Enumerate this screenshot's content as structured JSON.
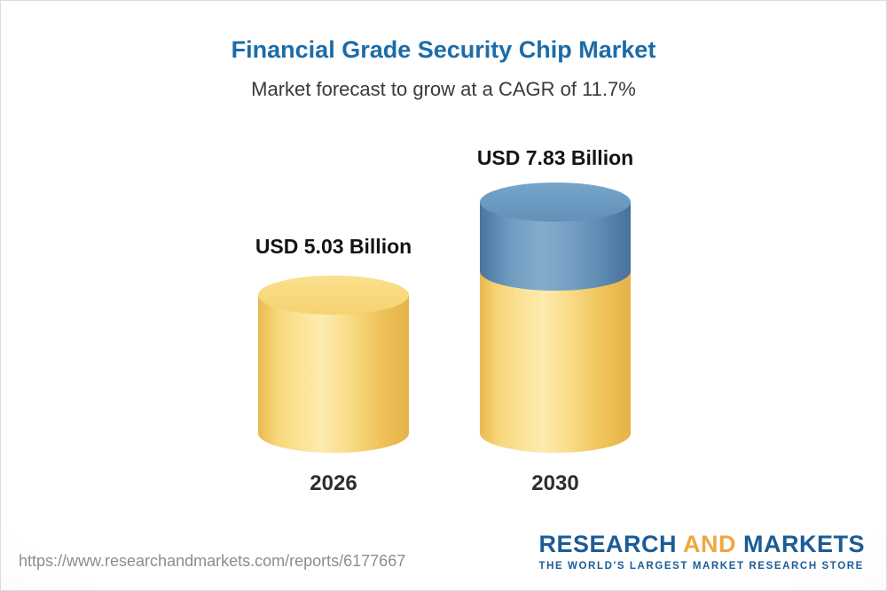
{
  "page": {
    "title": "Financial Grade Security Chip Market",
    "subtitle": "Market forecast to grow at a CAGR of 11.7%"
  },
  "chart_data": {
    "type": "bar",
    "bar_style": "3d-cylinder",
    "title": "Financial Grade Security Chip Market",
    "subtitle": "Market forecast to grow at a CAGR of 11.7%",
    "cagr_percent": 11.7,
    "unit": "USD Billion",
    "categories": [
      "2026",
      "2030"
    ],
    "values": [
      5.03,
      7.83
    ],
    "value_labels": [
      "USD 5.03 Billion",
      "USD 7.83 Billion"
    ],
    "legend": "none",
    "axes": "none",
    "colors": {
      "base_bar": "#F5CE68",
      "growth_segment": "#6290B7",
      "title_text": "#1C6CA8"
    }
  },
  "footer": {
    "url": "https://www.researchandmarkets.com/reports/6177667",
    "logo": {
      "word_research": "RESEARCH",
      "word_and": "AND",
      "word_markets": "MARKETS",
      "tagline": "THE WORLD'S LARGEST MARKET RESEARCH STORE"
    }
  }
}
